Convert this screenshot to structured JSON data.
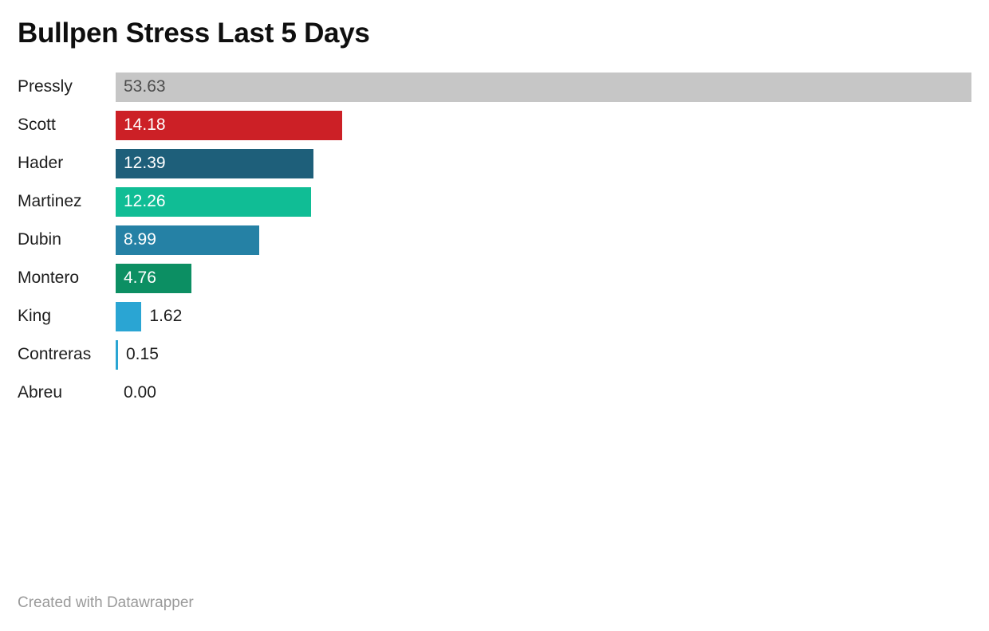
{
  "title": "Bullpen Stress Last 5 Days",
  "footer": {
    "credit": "Created with Datawrapper"
  },
  "colors": {
    "background": "#ffffff",
    "title_text": "#0f0f0f",
    "label_text": "#1d1d1d",
    "outside_value_text": "#1d1d1d"
  },
  "chart_data": {
    "type": "bar",
    "orientation": "horizontal",
    "title": "Bullpen Stress Last 5 Days",
    "xlabel": "",
    "ylabel": "",
    "xlim": [
      0,
      53.63
    ],
    "grid": false,
    "legend": "none",
    "categories": [
      "Pressly",
      "Scott",
      "Hader",
      "Martinez",
      "Dubin",
      "Montero",
      "King",
      "Contreras",
      "Abreu"
    ],
    "values": [
      53.63,
      14.18,
      12.39,
      12.26,
      8.99,
      4.76,
      1.62,
      0.15,
      0.0
    ],
    "bars": [
      {
        "label": "Pressly",
        "value": 53.63,
        "display": "53.63",
        "color": "#c6c6c6",
        "value_position": "inside",
        "value_color": "#4d4d4d"
      },
      {
        "label": "Scott",
        "value": 14.18,
        "display": "14.18",
        "color": "#cc2026",
        "value_position": "inside",
        "value_color": "#ffffff"
      },
      {
        "label": "Hader",
        "value": 12.39,
        "display": "12.39",
        "color": "#1e5f7a",
        "value_position": "inside",
        "value_color": "#ffffff"
      },
      {
        "label": "Martinez",
        "value": 12.26,
        "display": "12.26",
        "color": "#10bd95",
        "value_position": "inside",
        "value_color": "#ffffff"
      },
      {
        "label": "Dubin",
        "value": 8.99,
        "display": "8.99",
        "color": "#2581a5",
        "value_position": "inside",
        "value_color": "#ffffff"
      },
      {
        "label": "Montero",
        "value": 4.76,
        "display": "4.76",
        "color": "#0c8f63",
        "value_position": "inside",
        "value_color": "#ffffff"
      },
      {
        "label": "King",
        "value": 1.62,
        "display": "1.62",
        "color": "#2aa5d3",
        "value_position": "outside",
        "value_color": "#1d1d1d"
      },
      {
        "label": "Contreras",
        "value": 0.15,
        "display": "0.15",
        "color": "#2aa5d3",
        "value_position": "outside",
        "value_color": "#1d1d1d"
      },
      {
        "label": "Abreu",
        "value": 0.0,
        "display": "0.00",
        "color": "#2aa5d3",
        "value_position": "outside",
        "value_color": "#1d1d1d"
      }
    ]
  }
}
